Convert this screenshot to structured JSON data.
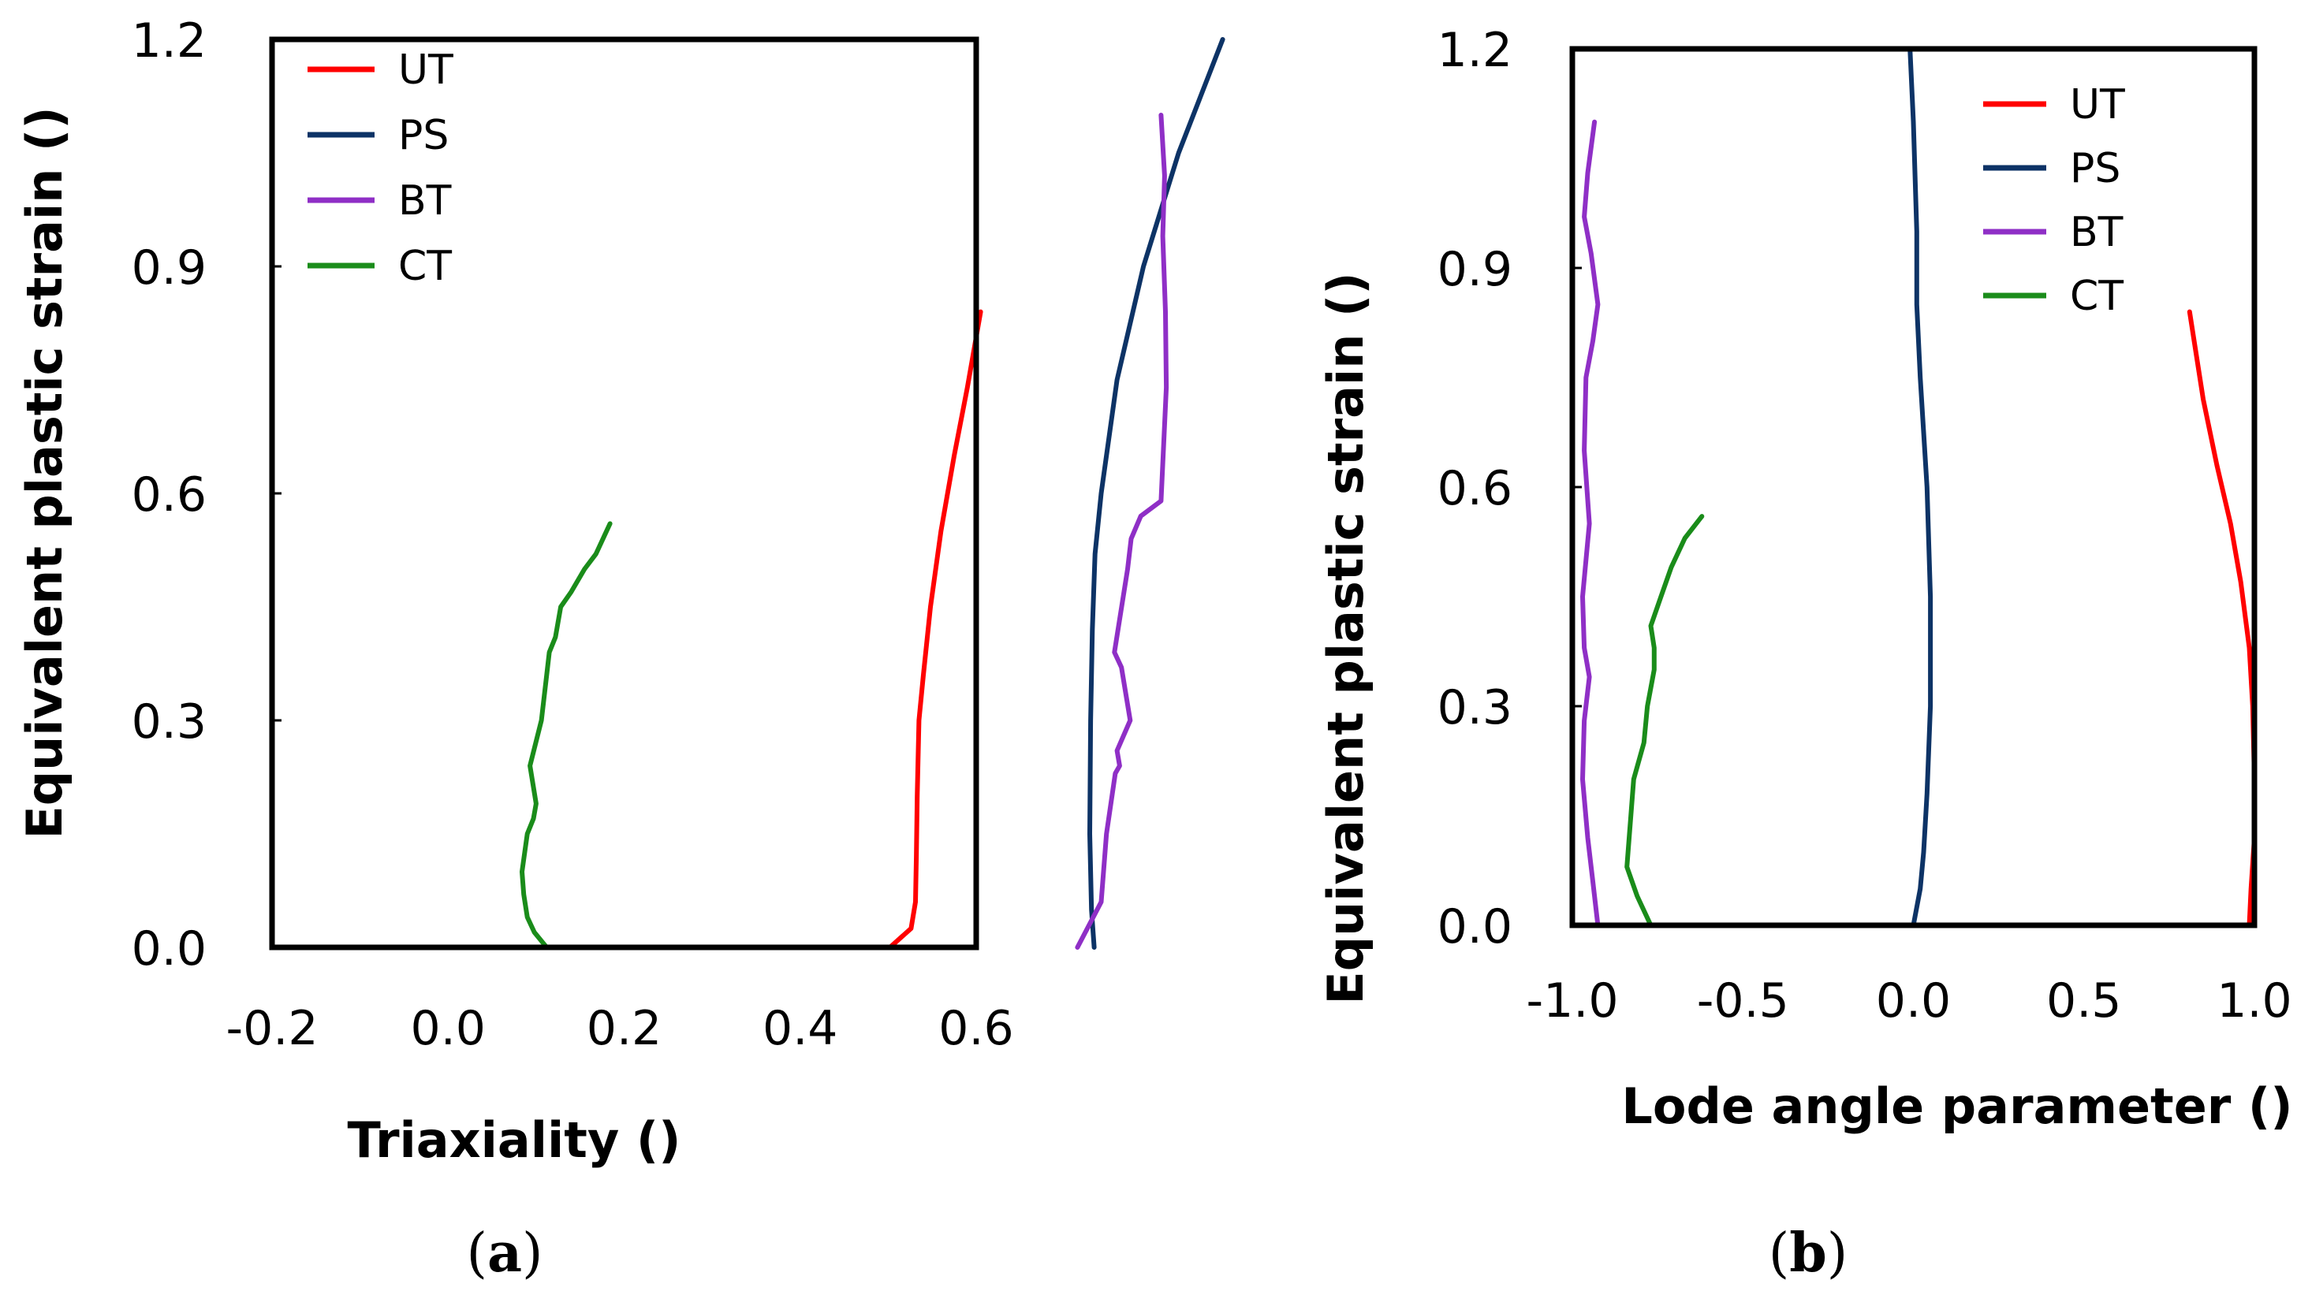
{
  "chart_data": [
    {
      "type": "line",
      "caption_letter": "a",
      "xlabel": "Triaxiality ()",
      "ylabel": "Equivalent plastic strain ()",
      "xlim": [
        -0.2,
        0.6
      ],
      "ylim": [
        0.0,
        1.2
      ],
      "xticks": [
        -0.2,
        0.0,
        0.2,
        0.4,
        0.6
      ],
      "yticks": [
        0.0,
        0.3,
        0.6,
        0.9,
        1.2
      ],
      "xtick_labels": [
        "-0.2",
        "0.0",
        "0.2",
        "0.4",
        "0.6"
      ],
      "ytick_labels": [
        "0.0",
        "0.3",
        "0.6",
        "0.9",
        "1.2"
      ],
      "legend_position": "top-left",
      "series": [
        {
          "name": "UT",
          "color": "#ff0000",
          "x": [
            0.502,
            0.526,
            0.531,
            0.532,
            0.533,
            0.535,
            0.54,
            0.548,
            0.56,
            0.575,
            0.59,
            0.605
          ],
          "y": [
            0.0,
            0.025,
            0.06,
            0.12,
            0.2,
            0.3,
            0.36,
            0.45,
            0.55,
            0.65,
            0.74,
            0.84
          ]
        },
        {
          "name": "PS",
          "color": "#0d3366",
          "x": [
            0.734,
            0.731,
            0.729,
            0.73,
            0.732,
            0.735,
            0.742,
            0.76,
            0.79,
            0.83,
            0.88
          ],
          "y": [
            0.0,
            0.05,
            0.15,
            0.3,
            0.42,
            0.52,
            0.6,
            0.75,
            0.9,
            1.05,
            1.2
          ]
        },
        {
          "name": "BT",
          "color": "#8f2fc6",
          "x": [
            0.715,
            0.742,
            0.748,
            0.758,
            0.763,
            0.76,
            0.775,
            0.765,
            0.757,
            0.772,
            0.776,
            0.787,
            0.81,
            0.816,
            0.815,
            0.812,
            0.814,
            0.81
          ],
          "y": [
            0.0,
            0.06,
            0.15,
            0.23,
            0.24,
            0.26,
            0.3,
            0.37,
            0.39,
            0.5,
            0.54,
            0.57,
            0.59,
            0.74,
            0.84,
            0.94,
            1.02,
            1.1
          ]
        },
        {
          "name": "CT",
          "color": "#1a8c1a",
          "x": [
            0.112,
            0.098,
            0.09,
            0.086,
            0.084,
            0.09,
            0.097,
            0.1,
            0.093,
            0.106,
            0.112,
            0.115,
            0.122,
            0.128,
            0.14,
            0.155,
            0.168,
            0.184
          ],
          "y": [
            0.0,
            0.02,
            0.04,
            0.07,
            0.1,
            0.15,
            0.17,
            0.19,
            0.24,
            0.3,
            0.36,
            0.39,
            0.41,
            0.45,
            0.47,
            0.5,
            0.52,
            0.56
          ]
        }
      ]
    },
    {
      "type": "line",
      "caption_letter": "b",
      "xlabel": "Lode angle parameter ()",
      "ylabel": "Equivalent plastic strain ()",
      "xlim": [
        -1.0,
        1.0
      ],
      "ylim": [
        0.0,
        1.2
      ],
      "xticks": [
        -1.0,
        -0.5,
        0.0,
        0.5,
        1.0
      ],
      "yticks": [
        0.0,
        0.3,
        0.6,
        0.9,
        1.2
      ],
      "xtick_labels": [
        "-1.0",
        "-0.5",
        "0.0",
        "0.5",
        "1.0"
      ],
      "ytick_labels": [
        "0.0",
        "0.3",
        "0.6",
        "0.9",
        "1.2"
      ],
      "legend_position": "top-right",
      "series": [
        {
          "name": "UT",
          "color": "#ff0000",
          "x": [
            0.985,
            0.99,
            1.0,
            1.0,
            0.995,
            0.985,
            0.96,
            0.93,
            0.89,
            0.85,
            0.81
          ],
          "y": [
            0.0,
            0.05,
            0.12,
            0.2,
            0.3,
            0.38,
            0.47,
            0.55,
            0.63,
            0.72,
            0.84
          ]
        },
        {
          "name": "PS",
          "color": "#0d3366",
          "x": [
            0.0,
            0.02,
            0.03,
            0.04,
            0.05,
            0.05,
            0.04,
            0.02,
            0.01,
            0.01,
            0.0,
            -0.01
          ],
          "y": [
            0.0,
            0.05,
            0.1,
            0.18,
            0.3,
            0.45,
            0.6,
            0.75,
            0.85,
            0.95,
            1.1,
            1.2
          ]
        },
        {
          "name": "BT",
          "color": "#8f2fc6",
          "x": [
            -0.925,
            -0.94,
            -0.955,
            -0.97,
            -0.965,
            -0.95,
            -0.965,
            -0.97,
            -0.95,
            -0.965,
            -0.96,
            -0.94,
            -0.925,
            -0.945,
            -0.965,
            -0.955,
            -0.935
          ],
          "y": [
            0.0,
            0.06,
            0.12,
            0.2,
            0.28,
            0.34,
            0.38,
            0.45,
            0.55,
            0.65,
            0.75,
            0.8,
            0.85,
            0.92,
            0.97,
            1.03,
            1.1
          ]
        },
        {
          "name": "CT",
          "color": "#1a8c1a",
          "x": [
            -0.77,
            -0.81,
            -0.84,
            -0.83,
            -0.82,
            -0.79,
            -0.78,
            -0.76,
            -0.76,
            -0.77,
            -0.74,
            -0.71,
            -0.67,
            -0.62
          ],
          "y": [
            0.0,
            0.04,
            0.08,
            0.14,
            0.2,
            0.25,
            0.3,
            0.35,
            0.38,
            0.41,
            0.45,
            0.49,
            0.53,
            0.56
          ]
        }
      ]
    }
  ]
}
